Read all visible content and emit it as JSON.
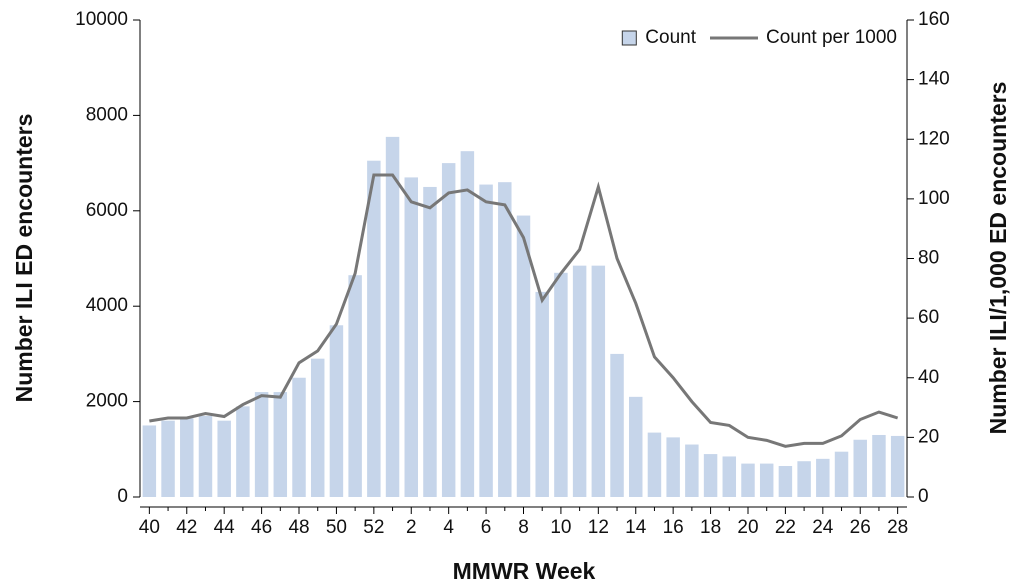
{
  "chart_data": {
    "type": "bar_line",
    "xlabel": "MMWR Week",
    "ylabel": "Number ILI ED encounters",
    "y2label": "Number ILI/1,000 ED encounters",
    "categories": [
      "40",
      null,
      "42",
      null,
      "44",
      null,
      "46",
      null,
      "48",
      null,
      "50",
      null,
      "52",
      null,
      "2",
      null,
      "4",
      null,
      "6",
      null,
      "8",
      null,
      "10",
      null,
      "12",
      null,
      "14",
      null,
      "16",
      null,
      "18",
      null,
      "20",
      null,
      "22",
      null,
      "24",
      null,
      "26",
      null,
      "28"
    ],
    "series": [
      {
        "name": "Count",
        "type": "bar",
        "color": "#c6d5ea",
        "values": [
          1500,
          1600,
          1650,
          1700,
          1600,
          1900,
          2200,
          2200,
          2500,
          2900,
          3600,
          4650,
          7050,
          7550,
          6700,
          6500,
          7000,
          7250,
          6550,
          6600,
          5900,
          4300,
          4700,
          4850,
          4850,
          3000,
          2100,
          1350,
          1250,
          1100,
          900,
          850,
          700,
          700,
          650,
          750,
          800,
          950,
          1200,
          1300,
          1280
        ]
      },
      {
        "name": "Count per 1000",
        "type": "line",
        "axis": "y2",
        "color": "#777777",
        "values": [
          25.5,
          26.5,
          26.5,
          28,
          27,
          31,
          34,
          33.5,
          45,
          49,
          58,
          75,
          108,
          108,
          99,
          97,
          102,
          103,
          99,
          98,
          87,
          66,
          75,
          83,
          104,
          80,
          65,
          47,
          40,
          32,
          25,
          24,
          20,
          19,
          17,
          18,
          18,
          20.5,
          26,
          28.5,
          26.5
        ]
      }
    ],
    "ylim": [
      0,
      10000
    ],
    "yticks": [
      0,
      2000,
      4000,
      6000,
      8000,
      10000
    ],
    "y2lim": [
      0,
      160
    ],
    "y2ticks": [
      0,
      20,
      40,
      60,
      80,
      100,
      120,
      140,
      160
    ],
    "legend": "top-right"
  }
}
